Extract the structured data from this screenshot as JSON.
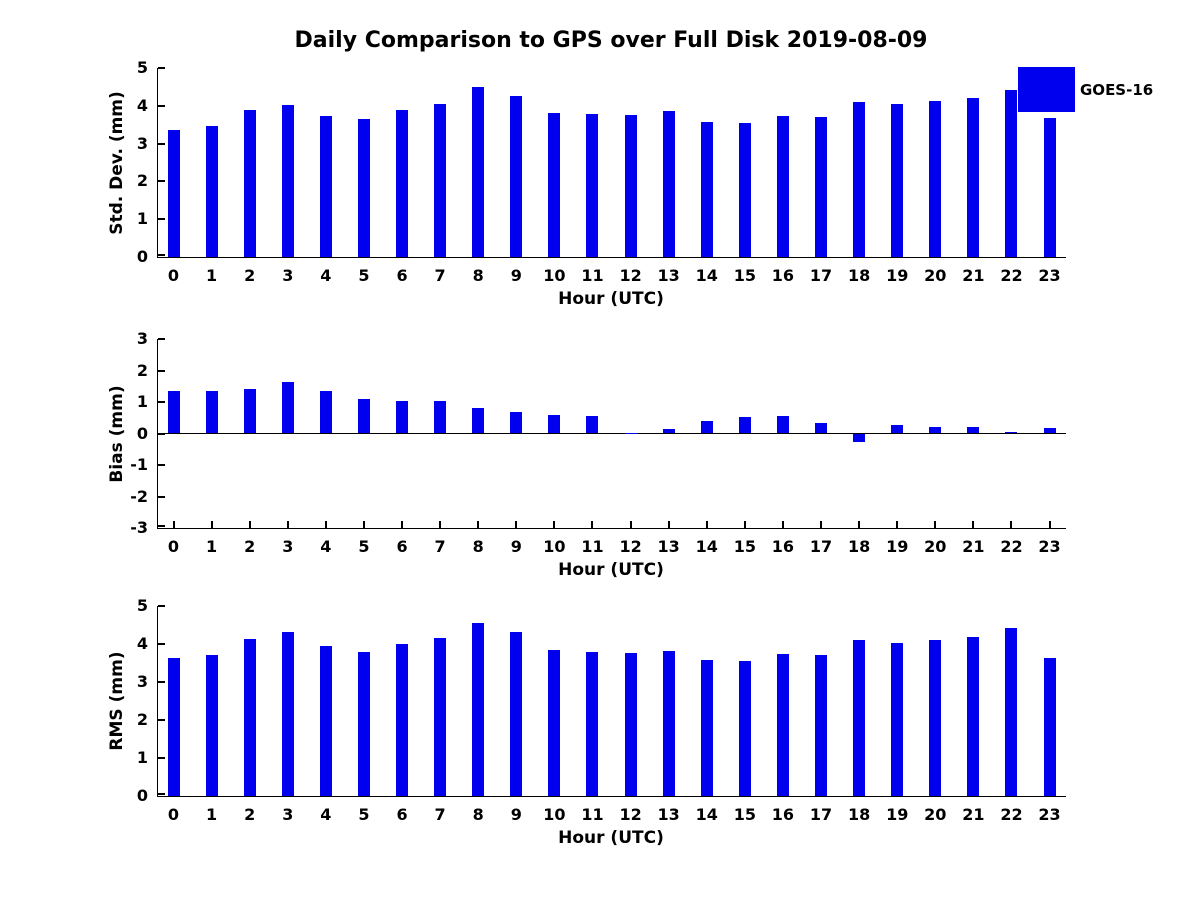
{
  "figure": {
    "title": "Daily Comparison to GPS over Full Disk 2019-08-09",
    "background": "#FFFFFF"
  },
  "legend": {
    "label": "GOES-16",
    "position": "upper-right"
  },
  "colors": {
    "bar": "#0000EE",
    "axis": "#000000",
    "text": "#000000"
  },
  "chart_data": [
    {
      "type": "bar",
      "title": "Daily Comparison to GPS over Full Disk 2019-08-09",
      "series_name": "GOES-16",
      "xlabel": "Hour (UTC)",
      "ylabel": "Std. Dev. (mm)",
      "ylim": [
        0,
        5
      ],
      "yticks": [
        0,
        1,
        2,
        3,
        4,
        5
      ],
      "grid": false,
      "legend": [
        "GOES-16"
      ],
      "legend_position": "upper-right",
      "categories": [
        "0",
        "1",
        "2",
        "3",
        "4",
        "5",
        "6",
        "7",
        "8",
        "9",
        "10",
        "11",
        "12",
        "13",
        "14",
        "15",
        "16",
        "17",
        "18",
        "19",
        "20",
        "21",
        "22",
        "23"
      ],
      "values": [
        3.35,
        3.47,
        3.9,
        4.03,
        3.72,
        3.64,
        3.88,
        4.05,
        4.5,
        4.27,
        3.81,
        3.77,
        3.76,
        3.86,
        3.58,
        3.55,
        3.73,
        3.7,
        4.11,
        4.06,
        4.14,
        4.2,
        4.42,
        3.67
      ]
    },
    {
      "type": "bar",
      "xlabel": "Hour (UTC)",
      "ylabel": "Bias (mm)",
      "ylim": [
        -3,
        3
      ],
      "yticks": [
        -3,
        -2,
        -1,
        0,
        1,
        2,
        3
      ],
      "grid": false,
      "categories": [
        "0",
        "1",
        "2",
        "3",
        "4",
        "5",
        "6",
        "7",
        "8",
        "9",
        "10",
        "11",
        "12",
        "13",
        "14",
        "15",
        "16",
        "17",
        "18",
        "19",
        "20",
        "21",
        "22",
        "23"
      ],
      "values": [
        1.35,
        1.35,
        1.4,
        1.63,
        1.35,
        1.08,
        1.02,
        1.02,
        0.8,
        0.68,
        0.58,
        0.55,
        0.02,
        0.13,
        0.41,
        0.51,
        0.54,
        0.34,
        -0.26,
        0.27,
        0.22,
        0.2,
        0.06,
        0.18
      ]
    },
    {
      "type": "bar",
      "xlabel": "Hour (UTC)",
      "ylabel": "RMS (mm)",
      "ylim": [
        0,
        5
      ],
      "yticks": [
        0,
        1,
        2,
        3,
        4,
        5
      ],
      "grid": false,
      "categories": [
        "0",
        "1",
        "2",
        "3",
        "4",
        "5",
        "6",
        "7",
        "8",
        "9",
        "10",
        "11",
        "12",
        "13",
        "14",
        "15",
        "16",
        "17",
        "18",
        "19",
        "20",
        "21",
        "22",
        "23"
      ],
      "values": [
        3.62,
        3.71,
        4.14,
        4.32,
        3.96,
        3.79,
        3.99,
        4.17,
        4.56,
        4.31,
        3.83,
        3.78,
        3.76,
        3.82,
        3.57,
        3.56,
        3.75,
        3.7,
        4.11,
        4.02,
        4.11,
        4.19,
        4.43,
        3.64
      ]
    }
  ]
}
